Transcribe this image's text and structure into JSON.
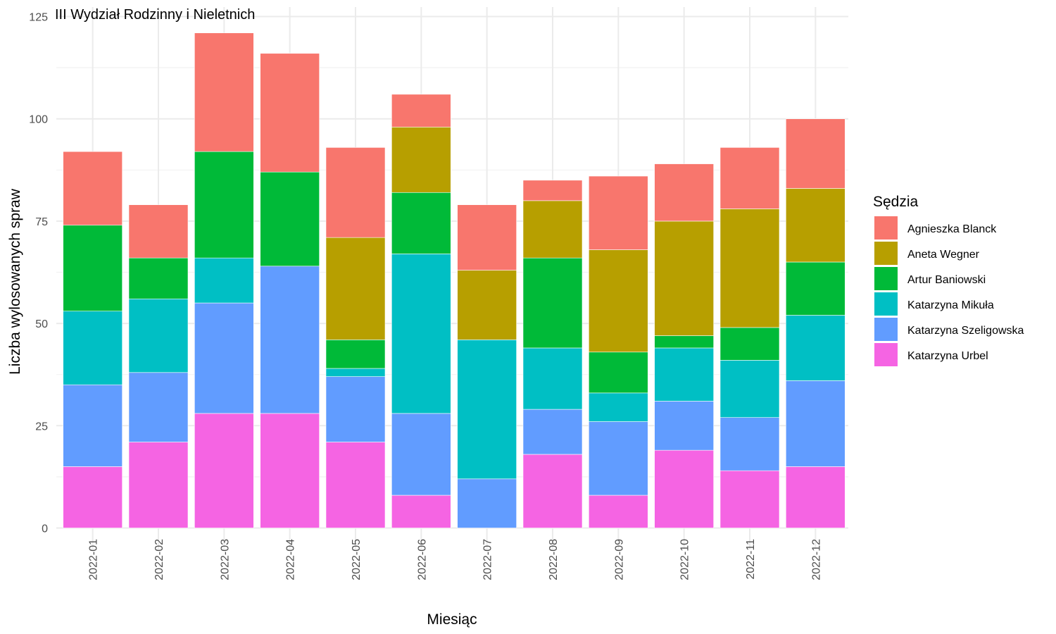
{
  "chart_data": {
    "type": "bar",
    "stacked": true,
    "title": "III Wydział Rodzinny i Nieletnich",
    "xlabel": "Miesiąc",
    "ylabel": "Liczba wylosowanych spraw",
    "ylim": [
      0,
      125
    ],
    "yticks": [
      0,
      25,
      50,
      75,
      100,
      125
    ],
    "grid": true,
    "legend_title": "Sędzia",
    "legend_position": "right",
    "categories": [
      "2022-01",
      "2022-02",
      "2022-03",
      "2022-04",
      "2022-05",
      "2022-06",
      "2022-07",
      "2022-08",
      "2022-09",
      "2022-10",
      "2022-11",
      "2022-12"
    ],
    "series": [
      {
        "name": "Katarzyna Urbel",
        "color": "#F564E3",
        "values": [
          15,
          21,
          28,
          28,
          21,
          8,
          0,
          18,
          8,
          19,
          14,
          15
        ]
      },
      {
        "name": "Katarzyna Szeligowska",
        "color": "#619CFF",
        "values": [
          20,
          17,
          27,
          36,
          16,
          20,
          12,
          11,
          18,
          12,
          13,
          21
        ]
      },
      {
        "name": "Katarzyna Mikuła",
        "color": "#00BFC4",
        "values": [
          18,
          18,
          11,
          0,
          2,
          39,
          34,
          15,
          7,
          13,
          14,
          16
        ]
      },
      {
        "name": "Artur Baniowski",
        "color": "#00BA38",
        "values": [
          21,
          10,
          26,
          23,
          7,
          15,
          0,
          22,
          10,
          3,
          8,
          13
        ]
      },
      {
        "name": "Aneta Wegner",
        "color": "#B79F00",
        "values": [
          0,
          0,
          0,
          0,
          25,
          16,
          17,
          14,
          25,
          28,
          29,
          18
        ]
      },
      {
        "name": "Agnieszka Blanck",
        "color": "#F8766D",
        "values": [
          18,
          13,
          29,
          29,
          22,
          8,
          16,
          5,
          18,
          14,
          15,
          17
        ]
      }
    ],
    "legend_order": [
      "Agnieszka Blanck",
      "Aneta Wegner",
      "Artur Baniowski",
      "Katarzyna Mikuła",
      "Katarzyna Szeligowska",
      "Katarzyna Urbel"
    ]
  }
}
